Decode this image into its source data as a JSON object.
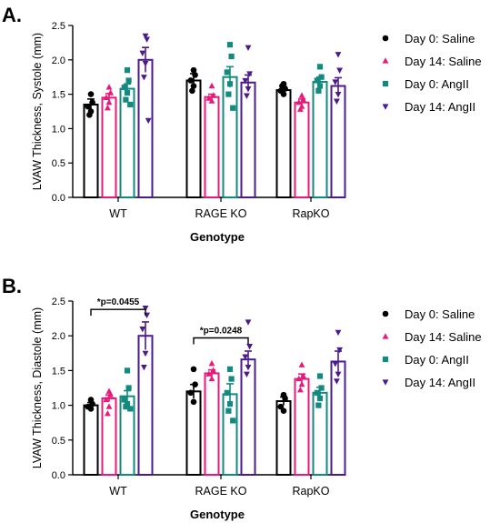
{
  "colors": {
    "day0_saline": "#000000",
    "day14_saline": "#e8197a",
    "day0_angii": "#138a80",
    "day14_angii": "#4b1b8e"
  },
  "chart_data": [
    {
      "type": "bar",
      "panel_label": "A.",
      "xlabel": "Genotype",
      "ylabel": "LVAW Thickness, Systole (mm)",
      "ylim": [
        0,
        2.5
      ],
      "yticks": [
        "0.0",
        "0.5",
        "1.0",
        "1.5",
        "2.0",
        "2.5"
      ],
      "categories": [
        "WT",
        "RAGE KO",
        "RapKO"
      ],
      "legend_position": "right",
      "series": [
        {
          "name": "Day 0: Saline",
          "marker": "circle",
          "color": "#000000",
          "values": [
            1.35,
            1.7,
            1.56
          ],
          "sem": [
            0.08,
            0.1,
            0.05
          ],
          "points": [
            [
              1.5,
              1.38,
              1.32,
              1.25,
              1.2
            ],
            [
              1.85,
              1.78,
              1.7,
              1.62,
              1.55
            ],
            [
              1.65,
              1.58,
              1.55,
              1.5,
              1.62
            ]
          ]
        },
        {
          "name": "Day 14: Saline",
          "marker": "triangle-up",
          "color": "#e8197a",
          "values": [
            1.45,
            1.46,
            1.38
          ],
          "sem": [
            0.06,
            0.04,
            0.05
          ],
          "points": [
            [
              1.6,
              1.52,
              1.45,
              1.38,
              1.3
            ],
            [
              1.62,
              1.48,
              1.44,
              1.4
            ],
            [
              1.48,
              1.42,
              1.38,
              1.32,
              1.28
            ]
          ]
        },
        {
          "name": "Day 0: AngII",
          "marker": "square",
          "color": "#138a80",
          "values": [
            1.58,
            1.75,
            1.68
          ],
          "sem": [
            0.07,
            0.15,
            0.07
          ],
          "points": [
            [
              1.85,
              1.7,
              1.6,
              1.52,
              1.42,
              1.35
            ],
            [
              2.22,
              2.05,
              1.82,
              1.65,
              1.5,
              1.3
            ],
            [
              1.9,
              1.75,
              1.7,
              1.62,
              1.55
            ]
          ]
        },
        {
          "name": "Day 14: AngII",
          "marker": "triangle-down",
          "color": "#4b1b8e",
          "values": [
            2.0,
            1.67,
            1.62
          ],
          "sem": [
            0.18,
            0.11,
            0.12
          ],
          "points": [
            [
              2.35,
              2.3,
              2.1,
              1.95,
              1.75,
              1.12
            ],
            [
              2.18,
              1.8,
              1.7,
              1.58,
              1.48
            ],
            [
              2.08,
              1.85,
              1.68,
              1.5,
              1.4
            ]
          ]
        }
      ],
      "annotations": []
    },
    {
      "type": "bar",
      "panel_label": "B.",
      "xlabel": "Genotype",
      "ylabel": "LVAW Thickness, Diastole (mm)",
      "ylim": [
        0,
        2.5
      ],
      "yticks": [
        "0.0",
        "0.5",
        "1.0",
        "1.5",
        "2.0",
        "2.5"
      ],
      "categories": [
        "WT",
        "RAGE KO",
        "RapKO"
      ],
      "legend_position": "right",
      "series": [
        {
          "name": "Day 0: Saline",
          "marker": "circle",
          "color": "#000000",
          "values": [
            1.0,
            1.2,
            1.06
          ],
          "sem": [
            0.04,
            0.1,
            0.06
          ],
          "points": [
            [
              1.08,
              1.02,
              0.98,
              0.95
            ],
            [
              1.52,
              1.3,
              1.18,
              1.05
            ],
            [
              1.15,
              1.1,
              0.98,
              0.92
            ]
          ]
        },
        {
          "name": "Day 14: Saline",
          "marker": "triangle-up",
          "color": "#e8197a",
          "values": [
            1.1,
            1.46,
            1.38
          ],
          "sem": [
            0.05,
            0.05,
            0.07
          ],
          "points": [
            [
              1.2,
              1.15,
              1.08,
              0.98,
              0.88
            ],
            [
              1.6,
              1.5,
              1.45,
              1.38
            ],
            [
              1.58,
              1.42,
              1.38,
              1.3,
              1.22
            ]
          ]
        },
        {
          "name": "Day 0: AngII",
          "marker": "square",
          "color": "#138a80",
          "values": [
            1.13,
            1.16,
            1.18
          ],
          "sem": [
            0.08,
            0.15,
            0.08
          ],
          "points": [
            [
              1.5,
              1.25,
              1.08,
              1.02,
              0.98,
              0.95
            ],
            [
              1.52,
              1.38,
              1.18,
              1.02,
              0.92,
              0.78
            ],
            [
              1.42,
              1.25,
              1.18,
              1.1,
              1.0
            ]
          ]
        },
        {
          "name": "Day 14: AngII",
          "marker": "triangle-down",
          "color": "#4b1b8e",
          "values": [
            2.0,
            1.66,
            1.63
          ],
          "sem": [
            0.2,
            0.12,
            0.15
          ],
          "points": [
            [
              2.4,
              2.3,
              2.1,
              1.75,
              1.55
            ],
            [
              2.2,
              1.85,
              1.7,
              1.55,
              1.45
            ],
            [
              2.05,
              1.8,
              1.6,
              1.45,
              1.35
            ]
          ]
        }
      ],
      "annotations": [
        {
          "text": "*p=0.0455",
          "category": "WT",
          "from_series": 0,
          "to_series": 3,
          "y": 2.38
        },
        {
          "text": "*p=0.0248",
          "category": "RAGE KO",
          "from_series": 0,
          "to_series": 3,
          "y": 1.97
        }
      ]
    }
  ]
}
